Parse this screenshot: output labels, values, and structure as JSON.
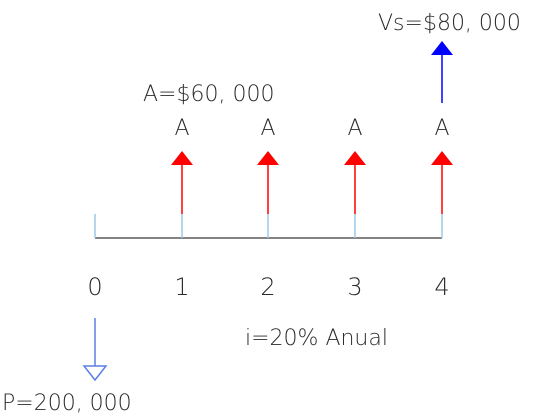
{
  "diagram": {
    "vs_label": "Vs=$80, 000",
    "annuity_label": "A=$60, 000",
    "arrow_labels": [
      "A",
      "A",
      "A",
      "A"
    ],
    "period_labels": [
      "0",
      "1",
      "2",
      "3",
      "4"
    ],
    "interest_label": "i=20% Anual",
    "principal_label": "P=200, 000",
    "colors": {
      "axis": "#5a5a5a",
      "tick": "#9ec8e8",
      "annuity": "#ff0000",
      "salvage": "#0000ff",
      "principal": "#5b7fe6",
      "text": "#2a2a2a"
    }
  }
}
